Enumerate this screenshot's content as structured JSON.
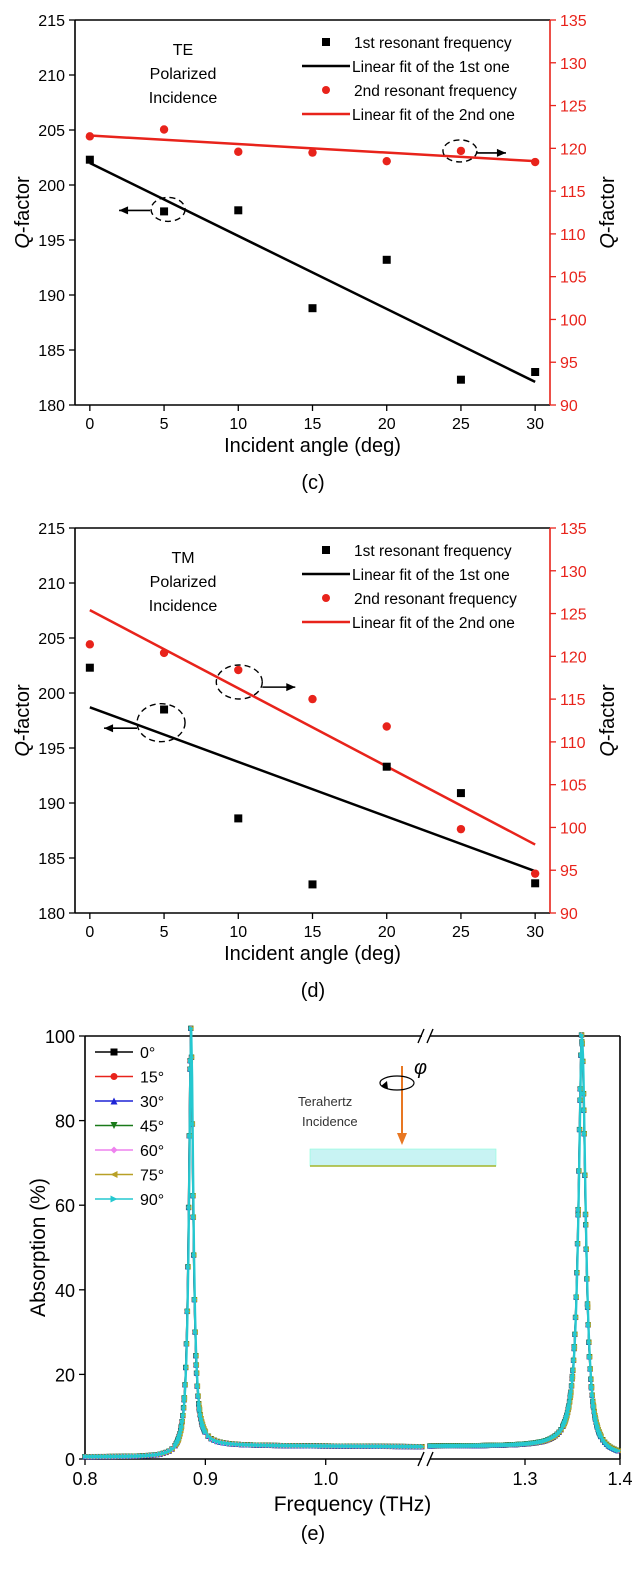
{
  "chart_data": [
    {
      "type": "scatter",
      "panel_label": "(c)",
      "xlabel": "Incident angle (deg)",
      "ylabel": "Q-factor",
      "ylabel_right": "Q-factor",
      "xlim": [
        -1,
        31
      ],
      "ylim": [
        180,
        215
      ],
      "ylim_right": [
        90,
        135
      ],
      "xticks": [
        0,
        5,
        10,
        15,
        20,
        25,
        30
      ],
      "yticks": [
        180,
        185,
        190,
        195,
        200,
        205,
        210,
        215
      ],
      "yticks_right": [
        90,
        95,
        100,
        105,
        110,
        115,
        120,
        125,
        130,
        135
      ],
      "annotation": [
        "TE",
        "Polarized",
        "Incidence"
      ],
      "x": [
        0,
        5,
        10,
        15,
        20,
        25,
        30
      ],
      "series": [
        {
          "name": "1st  resonant frequency",
          "axis": "left",
          "color": "#000000",
          "marker": "square",
          "values": [
            202.3,
            197.6,
            197.7,
            188.8,
            193.2,
            182.3,
            183.0
          ]
        },
        {
          "name": "Linear fit of the 1st  one",
          "axis": "left",
          "color": "#000000",
          "line": true,
          "values": [
            202.0,
            null,
            null,
            null,
            null,
            null,
            182.1
          ]
        },
        {
          "name": "2nd resonant frequency",
          "axis": "right",
          "color": "#e8231b",
          "marker": "circle",
          "values": [
            121.4,
            122.2,
            119.6,
            119.5,
            118.5,
            119.7,
            118.4
          ]
        },
        {
          "name": "Linear fit of the 2nd one",
          "axis": "right",
          "color": "#e8231b",
          "line": true,
          "values": [
            121.5,
            null,
            null,
            null,
            null,
            null,
            118.5
          ]
        }
      ]
    },
    {
      "type": "scatter",
      "panel_label": "(d)",
      "xlabel": "Incident angle (deg)",
      "ylabel": "Q-factor",
      "ylabel_right": "Q-factor",
      "xlim": [
        -1,
        31
      ],
      "ylim": [
        180,
        215
      ],
      "ylim_right": [
        90,
        135
      ],
      "xticks": [
        0,
        5,
        10,
        15,
        20,
        25,
        30
      ],
      "yticks": [
        180,
        185,
        190,
        195,
        200,
        205,
        210,
        215
      ],
      "yticks_right": [
        90,
        95,
        100,
        105,
        110,
        115,
        120,
        125,
        130,
        135
      ],
      "annotation": [
        "TM",
        "Polarized",
        "Incidence"
      ],
      "x": [
        0,
        5,
        10,
        15,
        20,
        25,
        30
      ],
      "series": [
        {
          "name": "1st  resonant frequency",
          "axis": "left",
          "color": "#000000",
          "marker": "square",
          "values": [
            202.3,
            198.5,
            188.6,
            182.6,
            193.3,
            190.9,
            182.7
          ]
        },
        {
          "name": "Linear fit of the 1st  one",
          "axis": "left",
          "color": "#000000",
          "line": true,
          "values": [
            198.7,
            null,
            null,
            null,
            null,
            null,
            183.8
          ]
        },
        {
          "name": "2nd resonant frequency",
          "axis": "right",
          "color": "#e8231b",
          "marker": "circle",
          "values": [
            121.4,
            120.4,
            118.4,
            115.0,
            111.8,
            99.8,
            94.6
          ]
        },
        {
          "name": "Linear fit of the 2nd one",
          "axis": "right",
          "color": "#e8231b",
          "line": true,
          "values": [
            125.4,
            null,
            null,
            null,
            null,
            null,
            98.0
          ]
        }
      ]
    },
    {
      "type": "line",
      "panel_label": "(e)",
      "xlabel": "Frequency (THz)",
      "ylabel": "Absorption (%)",
      "ylim": [
        0,
        100
      ],
      "yticks": [
        0,
        20,
        40,
        60,
        80,
        100
      ],
      "xticks": [
        "0.8",
        "0.9",
        "1.0",
        "1.3",
        "1.4"
      ],
      "axis_break": {
        "left_range": [
          0.8,
          1.08
        ],
        "right_range": [
          1.2,
          1.4
        ]
      },
      "inset": {
        "text": [
          "Terahertz",
          "Incidence"
        ],
        "symbol": "φ"
      },
      "series_names": [
        "0°",
        "15°",
        "30°",
        "45°",
        "60°",
        "75°",
        "90°"
      ],
      "series_colors": [
        "#000000",
        "#e8231b",
        "#1f24d6",
        "#1a7a1a",
        "#ee82ee",
        "#b8a026",
        "#25c8d0"
      ],
      "series_markers": [
        "square",
        "circle",
        "triangle-up",
        "triangle-down",
        "diamond",
        "triangle-left",
        "triangle-right"
      ],
      "resonance_1": {
        "f0": 0.888,
        "peak": 98.6
      },
      "resonance_2": {
        "f0": 1.36,
        "peak": 98.0
      }
    }
  ]
}
